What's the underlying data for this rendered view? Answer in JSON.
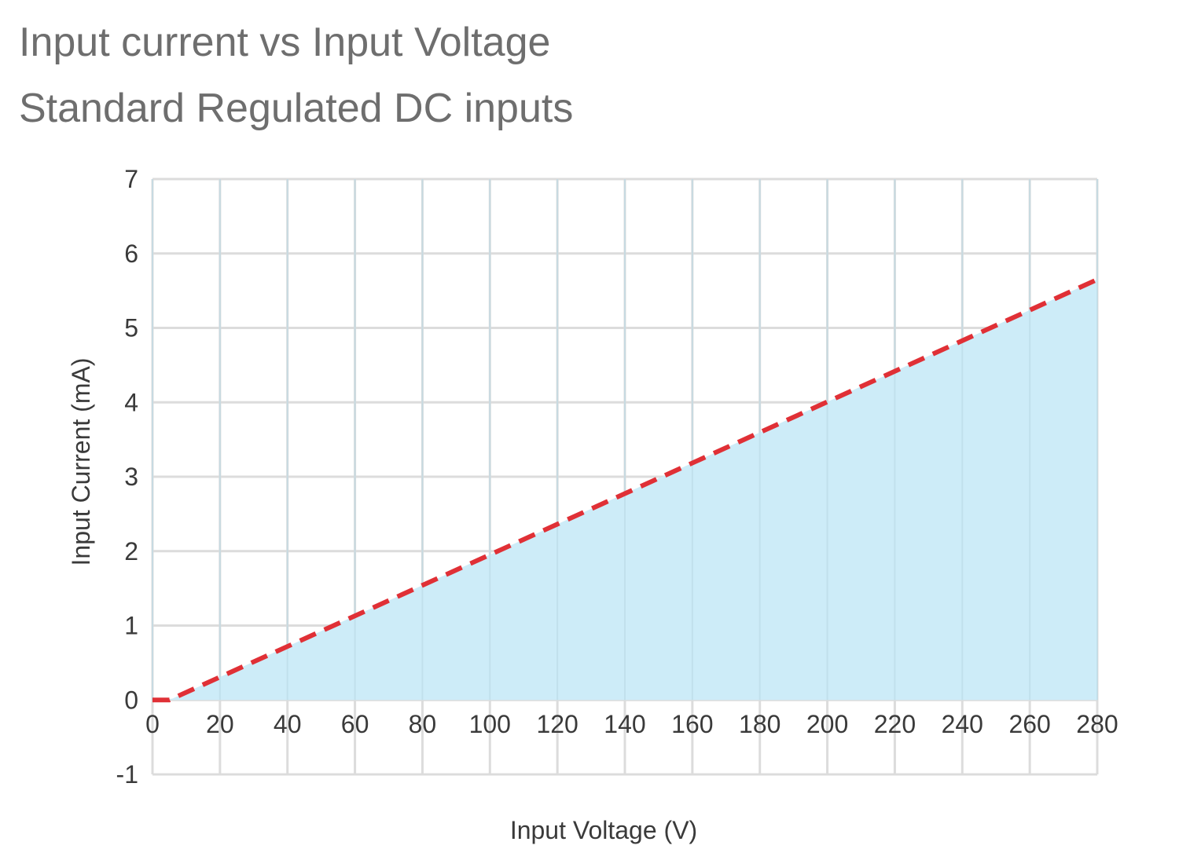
{
  "title": "Input current vs Input Voltage",
  "subtitle": "Standard Regulated DC inputs",
  "colors": {
    "area_fill": "#cdecf8",
    "line": "#e03036",
    "grid": "#dcdcdc",
    "title_text": "#6e6e6e",
    "axis_text": "#3a3a3a"
  },
  "chart_data": {
    "type": "area",
    "title": "Input current vs Input Voltage",
    "subtitle": "Standard Regulated DC inputs",
    "xlabel": "Input Voltage (V)",
    "ylabel": "Input Current (mA)",
    "xlim": [
      0,
      280
    ],
    "ylim": [
      -1,
      7
    ],
    "x_ticks": [
      0,
      20,
      40,
      60,
      80,
      100,
      120,
      140,
      160,
      180,
      200,
      220,
      240,
      260,
      280
    ],
    "y_ticks": [
      -1,
      0,
      1,
      2,
      3,
      4,
      5,
      6,
      7
    ],
    "grid": true,
    "legend": "none",
    "series": [
      {
        "style": "dashed",
        "x": [
          0,
          5,
          280
        ],
        "y": [
          0,
          0,
          5.65
        ]
      }
    ]
  }
}
